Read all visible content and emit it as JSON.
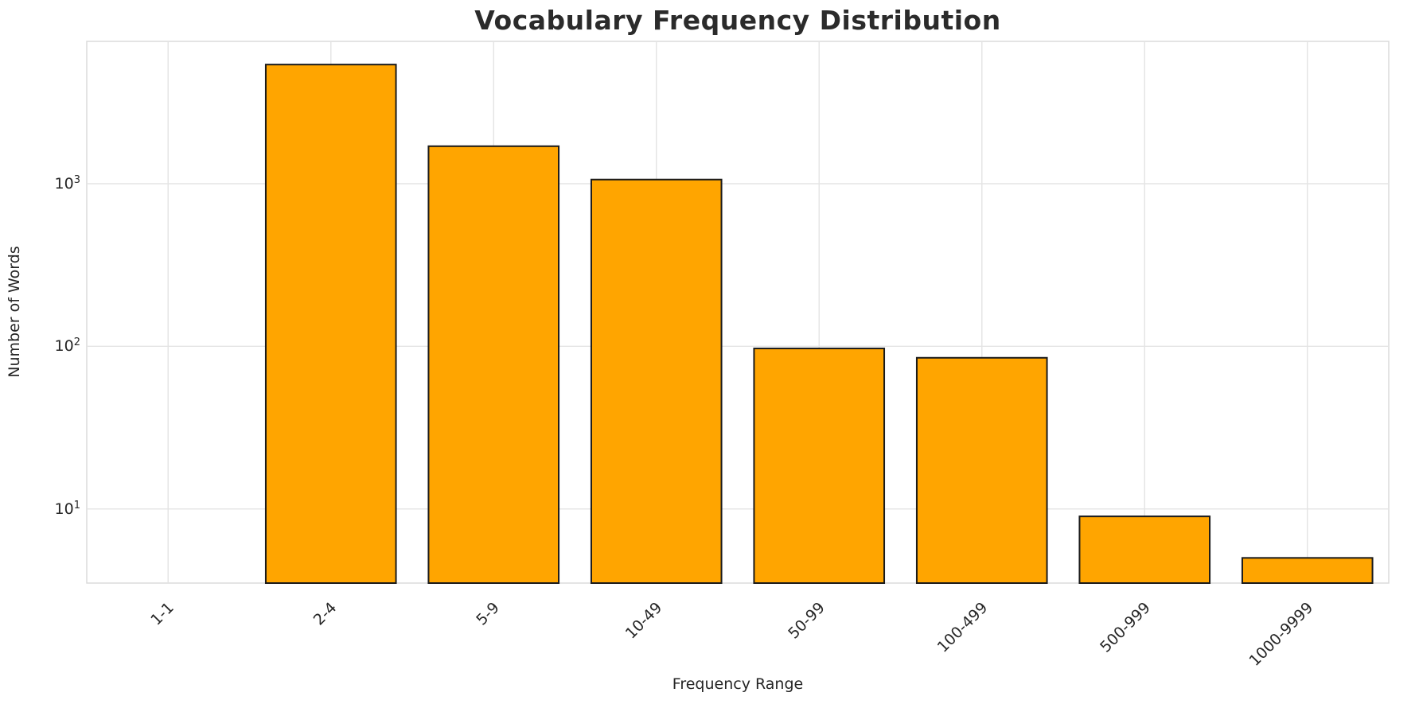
{
  "chart_data": {
    "type": "bar",
    "title": "Vocabulary Frequency Distribution",
    "xlabel": "Frequency Range",
    "ylabel": "Number of Words",
    "categories": [
      "1-1",
      "2-4",
      "5-9",
      "10-49",
      "50-99",
      "100-499",
      "500-999",
      "1000-9999"
    ],
    "values": [
      0,
      5400,
      1700,
      1060,
      97,
      85,
      9,
      5
    ],
    "yscale": "log",
    "ylim": [
      3.5,
      7500
    ],
    "yticks": [
      10,
      100,
      1000
    ],
    "bar_color": "#FFA500",
    "bar_edge_color": "#1a1a1a",
    "grid": true,
    "grid_color": "#e4e4e4",
    "legend": "none",
    "bar_width_fraction": 0.8
  }
}
